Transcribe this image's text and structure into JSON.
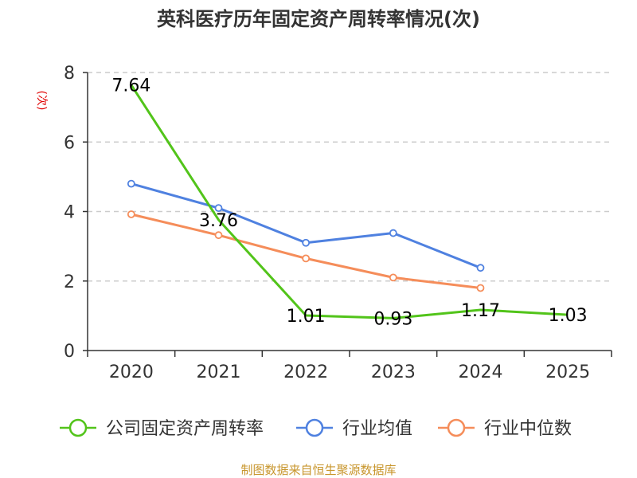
{
  "chart_data": {
    "type": "line",
    "title": "英科医疗历年固定资产周转率情况(次)",
    "ylabel": "(次)",
    "xlabel": "",
    "categories": [
      "2020",
      "2021",
      "2022",
      "2023",
      "2024",
      "2025"
    ],
    "ylim": [
      0,
      8
    ],
    "yticks": [
      0,
      2,
      4,
      6,
      8
    ],
    "grid": true,
    "legend_position": "bottom",
    "series": [
      {
        "name": "公司固定资产周转率",
        "color": "#52c41a",
        "values": [
          7.64,
          3.76,
          1.01,
          0.93,
          1.17,
          1.03
        ],
        "labels": [
          "7.64",
          "3.76",
          "1.01",
          "0.93",
          "1.17",
          "1.03"
        ],
        "markers": false
      },
      {
        "name": "行业均值",
        "color": "#4f81e0",
        "values": [
          4.8,
          4.1,
          3.1,
          3.38,
          2.38,
          null
        ],
        "markers": true
      },
      {
        "name": "行业中位数",
        "color": "#f58d5a",
        "values": [
          3.92,
          3.32,
          2.65,
          2.1,
          1.8,
          null
        ],
        "markers": true
      }
    ]
  },
  "source": "制图数据来自恒生聚源数据库"
}
